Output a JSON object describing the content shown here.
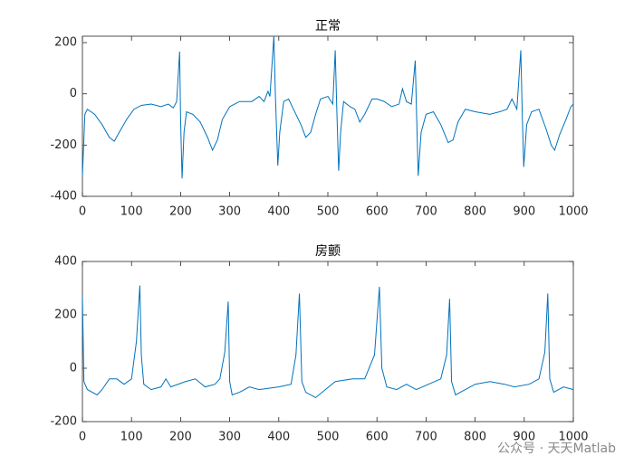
{
  "chart_data": [
    {
      "type": "line",
      "title": "正常",
      "color": "#0072BD",
      "x": [
        0,
        5,
        10,
        25,
        40,
        55,
        65,
        75,
        90,
        105,
        120,
        140,
        160,
        175,
        185,
        192,
        198,
        200,
        203,
        207,
        212,
        225,
        240,
        255,
        265,
        275,
        285,
        300,
        320,
        345,
        360,
        370,
        378,
        382,
        390,
        393,
        398,
        402,
        410,
        420,
        430,
        445,
        455,
        465,
        475,
        485,
        500,
        510,
        515,
        518,
        522,
        526,
        532,
        545,
        555,
        565,
        575,
        590,
        600,
        615,
        630,
        645,
        652,
        660,
        670,
        678,
        681,
        684,
        690,
        700,
        715,
        730,
        745,
        755,
        765,
        780,
        800,
        830,
        850,
        865,
        875,
        885,
        893,
        896,
        899,
        905,
        915,
        930,
        945,
        955,
        962,
        972,
        985,
        995,
        1000
      ],
      "values": [
        -320,
        -80,
        -60,
        -80,
        -120,
        -170,
        -185,
        -150,
        -100,
        -60,
        -45,
        -40,
        -50,
        -40,
        -55,
        -30,
        165,
        -100,
        -330,
        -150,
        -70,
        -80,
        -110,
        -170,
        -220,
        -180,
        -100,
        -50,
        -30,
        -30,
        -10,
        -30,
        10,
        -10,
        225,
        0,
        -280,
        -150,
        -30,
        -20,
        -60,
        -120,
        -170,
        -150,
        -80,
        -20,
        -10,
        -40,
        170,
        -50,
        -300,
        -150,
        -30,
        -50,
        -60,
        -110,
        -80,
        -20,
        -20,
        -30,
        -50,
        -40,
        20,
        -30,
        -40,
        130,
        -100,
        -320,
        -150,
        -80,
        -70,
        -120,
        -190,
        -180,
        -110,
        -60,
        -70,
        -80,
        -70,
        -60,
        -20,
        -60,
        170,
        -80,
        -285,
        -120,
        -70,
        -60,
        -140,
        -200,
        -220,
        -160,
        -100,
        -50,
        -40
      ],
      "xlim": [
        0,
        1000
      ],
      "xticks": [
        0,
        100,
        200,
        300,
        400,
        500,
        600,
        700,
        800,
        900,
        1000
      ],
      "ylim": [
        -400,
        225
      ],
      "yticks": [
        -400,
        -200,
        0,
        200
      ]
    },
    {
      "type": "line",
      "title": "房颤",
      "color": "#0072BD",
      "x": [
        0,
        3,
        10,
        30,
        40,
        55,
        70,
        85,
        100,
        110,
        117,
        120,
        125,
        140,
        160,
        170,
        180,
        210,
        230,
        250,
        270,
        280,
        290,
        297,
        300,
        305,
        320,
        340,
        360,
        400,
        425,
        435,
        442,
        447,
        455,
        475,
        495,
        515,
        550,
        575,
        595,
        605,
        610,
        620,
        640,
        660,
        680,
        705,
        730,
        742,
        748,
        752,
        760,
        780,
        800,
        830,
        860,
        880,
        910,
        930,
        942,
        948,
        952,
        960,
        980,
        1000
      ],
      "values": [
        270,
        -50,
        -80,
        -100,
        -80,
        -40,
        -40,
        -60,
        -40,
        100,
        310,
        50,
        -60,
        -80,
        -70,
        -40,
        -70,
        -50,
        -40,
        -70,
        -60,
        -40,
        60,
        250,
        -50,
        -100,
        -90,
        -70,
        -80,
        -70,
        -60,
        50,
        280,
        -50,
        -90,
        -110,
        -80,
        -50,
        -40,
        -40,
        50,
        305,
        0,
        -70,
        -80,
        -60,
        -80,
        -60,
        -40,
        50,
        260,
        -50,
        -100,
        -80,
        -60,
        -50,
        -60,
        -70,
        -60,
        -40,
        60,
        280,
        -40,
        -90,
        -70,
        -80
      ],
      "xlim": [
        0,
        1000
      ],
      "xticks": [
        0,
        100,
        200,
        300,
        400,
        500,
        600,
        700,
        800,
        900,
        1000
      ],
      "ylim": [
        -200,
        400
      ],
      "yticks": [
        -200,
        0,
        200,
        400
      ]
    }
  ],
  "watermark": "公众号 · 天天Matlab"
}
